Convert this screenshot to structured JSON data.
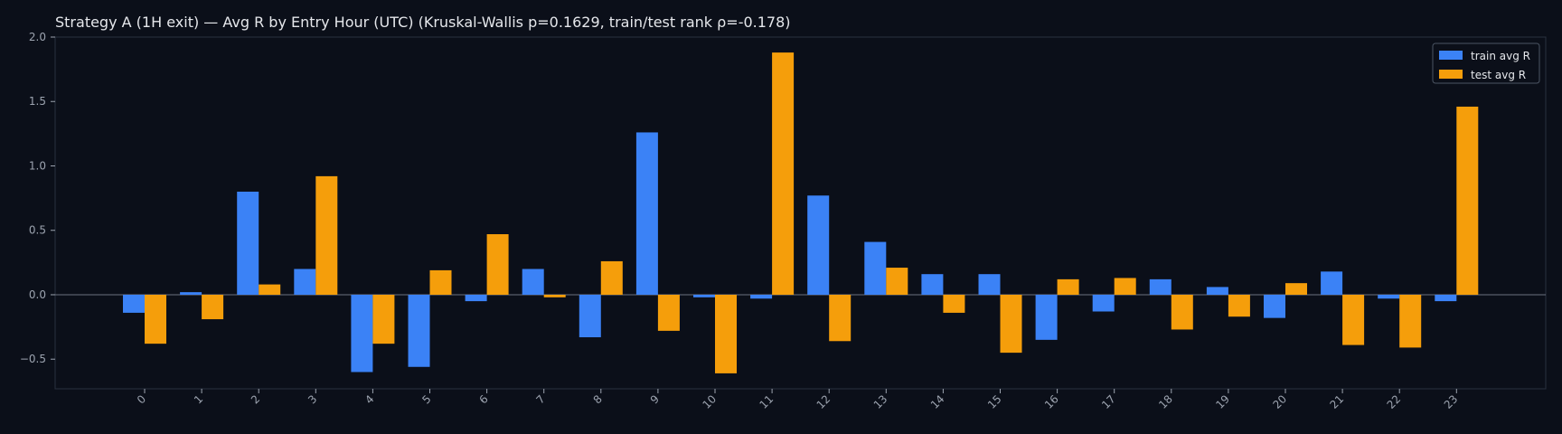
{
  "chart_data": {
    "type": "bar",
    "title": "Strategy A (1H exit) — Avg R by Entry Hour (UTC) (Kruskal-Wallis p=0.1629, train/test rank ρ=-0.178)",
    "xlabel": "",
    "ylabel": "",
    "categories": [
      "0",
      "1",
      "2",
      "3",
      "4",
      "5",
      "6",
      "7",
      "8",
      "9",
      "10",
      "11",
      "12",
      "13",
      "14",
      "15",
      "16",
      "17",
      "18",
      "19",
      "20",
      "21",
      "22",
      "23"
    ],
    "series": [
      {
        "name": "train avg R",
        "color": "#3b82f6",
        "values": [
          -0.14,
          0.02,
          0.8,
          0.2,
          -0.6,
          -0.56,
          -0.05,
          0.2,
          -0.33,
          1.26,
          -0.02,
          -0.03,
          0.77,
          0.41,
          0.16,
          0.16,
          -0.35,
          -0.13,
          0.12,
          0.06,
          -0.18,
          0.18,
          -0.03,
          -0.05
        ]
      },
      {
        "name": "test avg R",
        "color": "#f59e0b",
        "values": [
          -0.38,
          -0.19,
          0.08,
          0.92,
          -0.38,
          0.19,
          0.47,
          -0.02,
          0.26,
          -0.28,
          -0.61,
          1.88,
          -0.36,
          0.21,
          -0.14,
          -0.45,
          0.12,
          0.13,
          -0.27,
          -0.17,
          0.09,
          -0.39,
          -0.41,
          1.46
        ]
      }
    ],
    "ylim": [
      -0.73,
      2.0
    ],
    "yticks": [
      -0.5,
      0.0,
      0.5,
      1.0,
      1.5,
      2.0
    ],
    "ytick_labels": [
      "−0.5",
      "0.0",
      "0.5",
      "1.0",
      "1.5",
      "2.0"
    ],
    "legend": "top-right",
    "grid": false,
    "background": "#0b0f19",
    "text_color": "#e5e7eb",
    "tick_color": "#9ca3af",
    "axis_color": "#2a3140",
    "zero_line_color": "#6b7280"
  }
}
